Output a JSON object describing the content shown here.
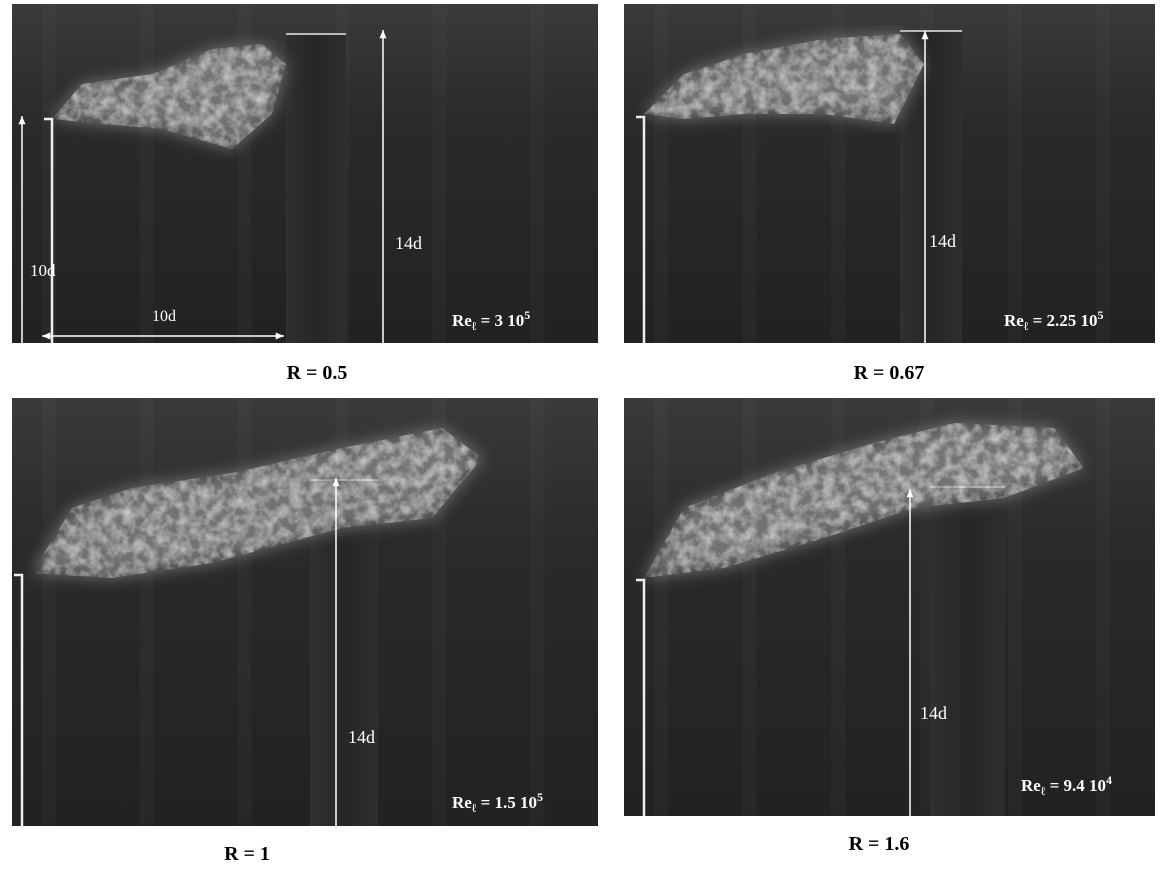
{
  "panels": [
    {
      "caption": "R = 0.5",
      "re": {
        "base": "Re",
        "sub": "ℓ",
        "value": " = 3 10",
        "exp": "5"
      },
      "labels": [
        "10d",
        "10d",
        "14d"
      ]
    },
    {
      "caption": "R = 0.67",
      "re": {
        "base": "Re",
        "sub": "ℓ",
        "value": " = 2.25 10",
        "exp": "5"
      },
      "labels": [
        "14d"
      ]
    },
    {
      "caption": "R = 1",
      "re": {
        "base": "Re",
        "sub": "ℓ",
        "value": " = 1.5 10",
        "exp": "5"
      },
      "labels": [
        "14d"
      ]
    },
    {
      "caption": "R = 1.6",
      "re": {
        "base": "Re",
        "sub": "ℓ",
        "value": " = 9.4 10",
        "exp": "4"
      },
      "labels": [
        "14d"
      ]
    }
  ]
}
